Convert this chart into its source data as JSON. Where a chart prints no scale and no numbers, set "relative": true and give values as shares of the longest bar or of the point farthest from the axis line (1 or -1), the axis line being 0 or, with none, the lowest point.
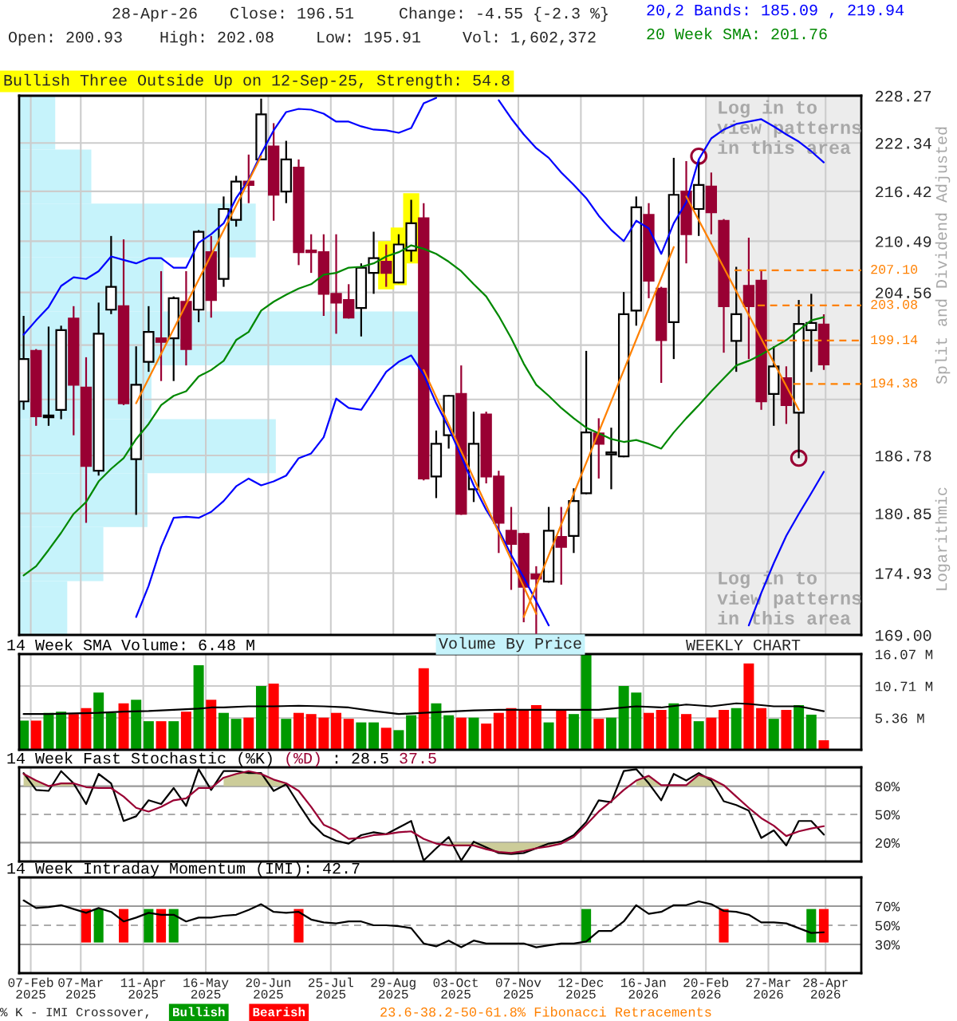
{
  "chart_data": [
    {
      "type": "candlestick",
      "log": "y",
      "grid": true,
      "tick_labels": "y",
      "xlim": [
        "2025-01-31T12:00",
        "2026-05-18"
      ],
      "ylim": [
        169,
        228.27
      ],
      "xticks": [
        "2025-02-07",
        "2025-03-07",
        "2025-04-11",
        "2025-05-16",
        "2025-06-20",
        "2025-07-25",
        "2025-08-29",
        "2025-10-03",
        "2025-11-07",
        "2025-12-12",
        "2026-01-16",
        "2026-02-20",
        "2026-03-27",
        "2026-04-28"
      ],
      "yticks": [
        {
          "value": 169,
          "label": "169.00"
        },
        {
          "value": 174.93,
          "label": "174.93"
        },
        {
          "value": 180.85,
          "label": "180.85"
        },
        {
          "value": 186.78,
          "label": "186.78"
        },
        {
          "value": 192.71,
          "label": null
        },
        {
          "value": 198.64,
          "label": null
        },
        {
          "value": 204.56,
          "label": "204.56"
        },
        {
          "value": 210.49,
          "label": "210.49"
        },
        {
          "value": 216.42,
          "label": "216.42"
        },
        {
          "value": 222.34,
          "label": "222.34"
        },
        {
          "value": 228.27,
          "label": "228.27"
        }
      ],
      "ylabel": "Split and Dividend Adjusted",
      "annotations": [
        "28-Apr-26",
        "Close: 196.51",
        "Change: -4.55 {-2.3 %}",
        "Open: 200.93",
        "High: 202.08",
        "Low: 195.91",
        "Vol: 1,602,372",
        "Bullish Three Outside Up on 12-Sep-25, Strength: 54.8",
        "Log in to view patterns in this area",
        "WEEKLY CHART",
        "Logarithmic",
        "23.6-38.2-50-61.8% Fibonacci Retracements"
      ],
      "bands": [
        {
          "axis": "x",
          "from": "2026-02-20",
          "to": "2026-05-18",
          "label": "Log in to view patterns in this area",
          "color": "#ececec"
        }
      ],
      "x": [
        "2025-02-03",
        "2025-02-10",
        "2025-02-17",
        "2025-02-24",
        "2025-03-03",
        "2025-03-10",
        "2025-03-17",
        "2025-03-24",
        "2025-03-31",
        "2025-04-07",
        "2025-04-14",
        "2025-04-21",
        "2025-04-28",
        "2025-05-05",
        "2025-05-12",
        "2025-05-19",
        "2025-05-26",
        "2025-06-02",
        "2025-06-09",
        "2025-06-16",
        "2025-06-23",
        "2025-06-30",
        "2025-07-07",
        "2025-07-14",
        "2025-07-21",
        "2025-07-28",
        "2025-08-04",
        "2025-08-11",
        "2025-08-18",
        "2025-08-25",
        "2025-09-01",
        "2025-09-08",
        "2025-09-15",
        "2025-09-22",
        "2025-09-29",
        "2025-10-06",
        "2025-10-13",
        "2025-10-20",
        "2025-10-27",
        "2025-11-03",
        "2025-11-10",
        "2025-11-17",
        "2025-11-24",
        "2025-12-01",
        "2025-12-08",
        "2025-12-15",
        "2025-12-22",
        "2025-12-29",
        "2026-01-05",
        "2026-01-12",
        "2026-01-19",
        "2026-01-26",
        "2026-02-02",
        "2026-02-09",
        "2026-02-16",
        "2026-02-23",
        "2026-03-02",
        "2026-03-09",
        "2026-03-16",
        "2026-03-23",
        "2026-03-30",
        "2026-04-06",
        "2026-04-13",
        "2026-04-20",
        "2026-04-27"
      ],
      "ohlc": [
        [
          192.5,
          201.9,
          191.6,
          197.1
        ],
        [
          198.0,
          198.2,
          189.9,
          190.9
        ],
        [
          190.8,
          200.7,
          189.9,
          191.0
        ],
        [
          191.6,
          200.8,
          190.6,
          200.3
        ],
        [
          201.6,
          203.0,
          188.9,
          194.3
        ],
        [
          194.0,
          197.3,
          179.9,
          185.7
        ],
        [
          185.2,
          203.4,
          184.7,
          199.9
        ],
        [
          202.6,
          211.1,
          202.1,
          205.2
        ],
        [
          203.0,
          210.7,
          192.1,
          192.3
        ],
        [
          186.4,
          198.5,
          180.7,
          194.3
        ],
        [
          196.8,
          203.0,
          195.7,
          200.1
        ],
        [
          199.4,
          207.0,
          194.7,
          199.0
        ],
        [
          199.4,
          204.1,
          194.7,
          203.9
        ],
        [
          203.5,
          207.0,
          196.4,
          198.2
        ],
        [
          202.6,
          211.8,
          201.2,
          211.6
        ],
        [
          209.2,
          211.1,
          201.7,
          203.7
        ],
        [
          206.1,
          215.8,
          205.2,
          214.3
        ],
        [
          213.0,
          218.3,
          212.2,
          217.6
        ],
        [
          217.6,
          220.9,
          215.0,
          217.2
        ],
        [
          220.3,
          227.9,
          220.2,
          225.9
        ],
        [
          221.9,
          224.8,
          212.9,
          216.0
        ],
        [
          216.4,
          222.6,
          215.0,
          220.3
        ],
        [
          219.3,
          220.3,
          207.7,
          209.2
        ],
        [
          209.4,
          211.3,
          206.8,
          209.2
        ],
        [
          209.2,
          211.3,
          201.9,
          204.4
        ],
        [
          204.4,
          211.3,
          199.9,
          203.4
        ],
        [
          203.7,
          205.5,
          201.6,
          201.7
        ],
        [
          202.8,
          207.9,
          199.6,
          207.4
        ],
        [
          206.8,
          211.6,
          204.4,
          208.5
        ],
        [
          208.1,
          210.1,
          205.2,
          206.8
        ],
        [
          205.7,
          211.3,
          205.6,
          210.1
        ],
        [
          209.4,
          215.4,
          208.1,
          212.6
        ],
        [
          213.2,
          215.0,
          184.2,
          184.4
        ],
        [
          184.6,
          189.4,
          182.4,
          188.0
        ],
        [
          188.9,
          193.2,
          187.5,
          193.1
        ],
        [
          193.3,
          196.4,
          180.7,
          180.8
        ],
        [
          183.3,
          191.4,
          182.0,
          188.0
        ],
        [
          191.1,
          191.4,
          183.9,
          184.6
        ],
        [
          184.6,
          185.2,
          176.9,
          179.9
        ],
        [
          179.1,
          181.5,
          173.3,
          177.8
        ],
        [
          178.8,
          178.9,
          170.2,
          173.6
        ],
        [
          174.8,
          175.6,
          169.1,
          174.4
        ],
        [
          174.1,
          181.5,
          174.0,
          179.1
        ],
        [
          178.5,
          181.5,
          173.8,
          177.5
        ],
        [
          178.6,
          183.4,
          176.9,
          182.1
        ],
        [
          182.9,
          198.0,
          182.8,
          189.2
        ],
        [
          189.1,
          190.7,
          184.4,
          188.0
        ],
        [
          186.9,
          189.7,
          183.3,
          187.1
        ],
        [
          186.7,
          204.6,
          186.6,
          202.1
        ],
        [
          202.5,
          215.8,
          200.8,
          214.5
        ],
        [
          213.6,
          215.0,
          203.9,
          205.9
        ],
        [
          205.0,
          205.2,
          194.5,
          199.2
        ],
        [
          201.2,
          220.5,
          197.1,
          216.0
        ],
        [
          216.4,
          220.1,
          207.9,
          211.3
        ],
        [
          214.3,
          220.3,
          211.1,
          217.2
        ],
        [
          217.0,
          218.7,
          211.3,
          213.9
        ],
        [
          212.9,
          213.1,
          197.8,
          203.0
        ],
        [
          199.1,
          207.5,
          195.7,
          202.1
        ],
        [
          205.3,
          210.9,
          197.1,
          203.0
        ],
        [
          205.9,
          207.0,
          191.6,
          192.5
        ],
        [
          193.3,
          198.5,
          189.9,
          196.3
        ],
        [
          195.0,
          196.3,
          190.1,
          192.1
        ],
        [
          191.3,
          203.7,
          186.5,
          201.0
        ],
        [
          200.3,
          204.4,
          195.7,
          201.1
        ],
        [
          200.93,
          202.08,
          195.91,
          196.51
        ]
      ],
      "colors": [
        "#ffffff",
        "#990033",
        "#ffffff",
        "#ffffff",
        "#990033",
        "#990033",
        "#ffffff",
        "#ffffff",
        "#990033",
        "#ffffff",
        "#ffffff",
        "#990033",
        "#ffffff",
        "#990033",
        "#ffffff",
        "#990033",
        "#ffffff",
        "#ffffff",
        "#990033",
        "#ffffff",
        "#990033",
        "#ffffff",
        "#990033",
        "#990033",
        "#990033",
        "#990033",
        "#990033",
        "#ffffff",
        "#ffffff",
        "#990033",
        "#ffffff",
        "#ffffff",
        "#990033",
        "#ffffff",
        "#ffffff",
        "#990033",
        "#ffffff",
        "#990033",
        "#990033",
        "#990033",
        "#990033",
        "#990033",
        "#ffffff",
        "#990033",
        "#ffffff",
        "#ffffff",
        "#990033",
        "#ffffff",
        "#ffffff",
        "#ffffff",
        "#990033",
        "#990033",
        "#ffffff",
        "#990033",
        "#ffffff",
        "#990033",
        "#990033",
        "#ffffff",
        "#990033",
        "#990033",
        "#ffffff",
        "#990033",
        "#ffffff",
        "#ffffff",
        "#990033"
      ],
      "series": [
        {
          "type": "line",
          "name": "20,2 Bands: 185.09 , 219.94",
          "color": "#0000ff",
          "values": [
            199.8,
            201.4,
            202.9,
            205.3,
            206.3,
            206.1,
            207.0,
            208.7,
            208.3,
            207.9,
            208.5,
            208.5,
            207.4,
            207.4,
            210.3,
            211.3,
            212.6,
            215.6,
            217.8,
            221.0,
            223.9,
            226.2,
            226.6,
            226.5,
            226.0,
            225.0,
            225.0,
            224.4,
            224.0,
            223.9,
            223.6,
            224.2,
            227.3,
            228.0,
            null,
            null,
            null,
            null,
            227.7,
            225.4,
            223.4,
            221.7,
            220.5,
            218.7,
            217.2,
            215.6,
            213.5,
            211.8,
            210.5,
            212.9,
            212.0,
            209.0,
            212.6,
            215.1,
            220.3,
            222.9,
            224.0,
            224.7,
            225.0,
            225.3,
            224.4,
            223.4,
            222.5,
            221.3,
            219.94
          ]
        },
        {
          "type": "line",
          "color": "#0000ff",
          "values": [
            null,
            null,
            null,
            null,
            null,
            null,
            null,
            null,
            null,
            170.7,
            173.7,
            177.5,
            180.4,
            180.5,
            180.4,
            181.0,
            182.1,
            183.6,
            184.4,
            183.7,
            184.1,
            184.7,
            186.5,
            187.0,
            188.7,
            192.8,
            191.8,
            191.6,
            193.6,
            195.7,
            196.8,
            197.5,
            195.4,
            192.3,
            189.7,
            186.7,
            183.7,
            181.2,
            179.2,
            176.7,
            174.5,
            172.2,
            169.9,
            null,
            null,
            null,
            null,
            null,
            null,
            null,
            null,
            null,
            null,
            null,
            null,
            null,
            null,
            null,
            169.9,
            173.0,
            175.9,
            178.6,
            180.8,
            182.9,
            185.09
          ]
        },
        {
          "type": "line",
          "name": "20 Week SMA: 201.76",
          "color": "#008800",
          "values": [
            174.7,
            175.6,
            177.2,
            178.9,
            180.8,
            182.0,
            184.1,
            185.4,
            186.5,
            188.5,
            190.1,
            192.1,
            193.1,
            193.6,
            195.2,
            195.9,
            196.9,
            199.2,
            200.1,
            202.5,
            203.5,
            204.3,
            205.0,
            205.5,
            206.6,
            206.8,
            207.4,
            207.5,
            207.9,
            208.7,
            209.2,
            210.0,
            209.6,
            209.0,
            208.1,
            207.0,
            205.5,
            204.1,
            201.9,
            199.4,
            196.6,
            194.3,
            193.1,
            191.8,
            190.7,
            189.7,
            189.1,
            188.5,
            188.2,
            188.4,
            188.0,
            187.5,
            189.2,
            190.7,
            192.1,
            193.6,
            195.0,
            196.4,
            196.9,
            197.6,
            198.4,
            199.2,
            200.3,
            201.4,
            201.76
          ]
        },
        {
          "type": "line",
          "color": "#ff8000",
          "x": [
            "2025-04-07",
            "2025-06-16"
          ],
          "values": [
            192.3,
            220.7
          ]
        },
        {
          "type": "line",
          "color": "#ff8000",
          "x": [
            "2025-09-15",
            "2025-11-17"
          ],
          "values": [
            195.9,
            171.0
          ]
        },
        {
          "type": "line",
          "color": "#ff8000",
          "x": [
            "2025-11-10",
            "2026-02-02"
          ],
          "values": [
            170.7,
            209.8
          ]
        },
        {
          "type": "line",
          "color": "#ff8000",
          "x": [
            "2026-02-09",
            "2026-04-13"
          ],
          "values": [
            215.8,
            191.6
          ]
        },
        {
          "type": "line",
          "name": "207.10",
          "color": "#ff8000",
          "line_style": "dashed",
          "x": [
            "2026-03-08",
            "2026-05-18"
          ],
          "values": [
            207.1,
            207.1
          ]
        },
        {
          "type": "line",
          "name": "203.08",
          "color": "#ff8000",
          "line_style": "dashed",
          "x": [
            "2026-03-21",
            "2026-05-18"
          ],
          "values": [
            203.08,
            203.08
          ]
        },
        {
          "type": "line",
          "name": "199.14",
          "color": "#ff8000",
          "line_style": "dashed",
          "x": [
            "2026-03-25",
            "2026-05-18"
          ],
          "values": [
            199.14,
            199.14
          ]
        },
        {
          "type": "line",
          "name": "194.38",
          "color": "#ff8000",
          "line_style": "dashed",
          "x": [
            "2026-04-10",
            "2026-05-18"
          ],
          "values": [
            194.38,
            194.38
          ]
        },
        {
          "type": "bar",
          "color": "#ffff00",
          "x": [
            "2025-08-25",
            "2025-09-01",
            "2025-09-08"
          ],
          "base": [
            204.9,
            205.4,
            207.9
          ],
          "values": [
            5.6,
            6.7,
            8.3
          ]
        },
        {
          "type": "scatter",
          "marker": "circle",
          "color": "#990033",
          "x": [
            "2026-02-16",
            "2026-04-13"
          ],
          "values": [
            220.7,
            186.5
          ]
        }
      ]
    },
    {
      "type": "bar",
      "orientation": "horizontal",
      "relative": true,
      "annotations": [
        "Volume By Price"
      ],
      "categories": [
        null,
        null,
        null,
        null,
        null,
        null,
        null,
        null,
        null,
        null
      ],
      "values": [
        0.09,
        0.18,
        0.59,
        0.36,
        1,
        0.33,
        0.64,
        0.32,
        0.21,
        0.12
      ],
      "color": "#c6f3fb"
    },
    {
      "type": "bar",
      "grid": true,
      "tick_labels": "y",
      "xlim": [
        "2025-01-31T12:00",
        "2026-05-18"
      ],
      "ylim": [
        0,
        16.07
      ],
      "xticks": [
        "2025-02-07",
        "2025-03-07",
        "2025-04-11",
        "2025-05-16",
        "2025-06-20",
        "2025-07-25",
        "2025-08-29",
        "2025-10-03",
        "2025-11-07",
        "2025-12-12",
        "2026-01-16",
        "2026-02-20",
        "2026-03-27",
        "2026-04-28"
      ],
      "yticks": [
        {
          "value": 5.36,
          "label": "5.36 M"
        },
        {
          "value": 10.71,
          "label": "10.71 M"
        },
        {
          "value": 16.07,
          "label": "16.07 M"
        }
      ],
      "x": [
        "2025-02-03",
        "2025-02-10",
        "2025-02-17",
        "2025-02-24",
        "2025-03-03",
        "2025-03-10",
        "2025-03-17",
        "2025-03-24",
        "2025-03-31",
        "2025-04-07",
        "2025-04-14",
        "2025-04-21",
        "2025-04-28",
        "2025-05-05",
        "2025-05-12",
        "2025-05-19",
        "2025-05-26",
        "2025-06-02",
        "2025-06-09",
        "2025-06-16",
        "2025-06-23",
        "2025-06-30",
        "2025-07-07",
        "2025-07-14",
        "2025-07-21",
        "2025-07-28",
        "2025-08-04",
        "2025-08-11",
        "2025-08-18",
        "2025-08-25",
        "2025-09-01",
        "2025-09-08",
        "2025-09-15",
        "2025-09-22",
        "2025-09-29",
        "2025-10-06",
        "2025-10-13",
        "2025-10-20",
        "2025-10-27",
        "2025-11-03",
        "2025-11-10",
        "2025-11-17",
        "2025-11-24",
        "2025-12-01",
        "2025-12-08",
        "2025-12-15",
        "2025-12-22",
        "2025-12-29",
        "2026-01-05",
        "2026-01-12",
        "2026-01-19",
        "2026-01-26",
        "2026-02-02",
        "2026-02-09",
        "2026-02-16",
        "2026-02-23",
        "2026-03-02",
        "2026-03-09",
        "2026-03-16",
        "2026-03-23",
        "2026-03-30",
        "2026-04-06",
        "2026-04-13",
        "2026-04-20",
        "2026-04-27"
      ],
      "values": [
        4.9,
        4.9,
        6.2,
        6.4,
        6.0,
        7.0,
        9.6,
        6.2,
        7.8,
        8.4,
        4.8,
        4.8,
        4.8,
        6.4,
        14.2,
        8.4,
        6.2,
        5.2,
        5.4,
        10.7,
        11.1,
        5.2,
        6.2,
        6.0,
        5.4,
        6.2,
        5.2,
        4.6,
        4.6,
        3.7,
        3.3,
        5.8,
        13.7,
        7.8,
        5.8,
        5.4,
        5.4,
        4.4,
        6.2,
        7.0,
        6.7,
        7.5,
        4.6,
        6.7,
        6.0,
        16.0,
        5.2,
        5.4,
        10.7,
        9.6,
        6.2,
        6.7,
        7.8,
        6.0,
        4.8,
        5.4,
        6.7,
        7.0,
        14.5,
        7.0,
        5.2,
        6.7,
        7.5,
        5.9,
        1.6
      ],
      "colors": [
        "#009900",
        "#ff0000",
        "#009900",
        "#009900",
        "#ff0000",
        "#ff0000",
        "#009900",
        "#009900",
        "#ff0000",
        "#009900",
        "#009900",
        "#ff0000",
        "#009900",
        "#ff0000",
        "#009900",
        "#ff0000",
        "#009900",
        "#009900",
        "#ff0000",
        "#009900",
        "#ff0000",
        "#009900",
        "#ff0000",
        "#ff0000",
        "#ff0000",
        "#ff0000",
        "#ff0000",
        "#009900",
        "#009900",
        "#ff0000",
        "#009900",
        "#009900",
        "#ff0000",
        "#009900",
        "#009900",
        "#ff0000",
        "#009900",
        "#ff0000",
        "#ff0000",
        "#ff0000",
        "#ff0000",
        "#ff0000",
        "#009900",
        "#ff0000",
        "#009900",
        "#009900",
        "#ff0000",
        "#009900",
        "#009900",
        "#009900",
        "#ff0000",
        "#ff0000",
        "#009900",
        "#ff0000",
        "#009900",
        "#ff0000",
        "#ff0000",
        "#009900",
        "#ff0000",
        "#ff0000",
        "#009900",
        "#ff0000",
        "#009900",
        "#009900",
        "#ff0000"
      ],
      "series": [
        {
          "type": "line",
          "name": "14 Week SMA Volume: 6.48 M",
          "color": "#000000",
          "x": [
            "2025-02-03",
            "2025-02-17",
            "2025-03-03",
            "2025-03-17",
            "2025-03-31",
            "2025-04-14",
            "2025-04-28",
            "2025-05-12",
            "2025-05-19",
            "2025-05-26",
            "2025-06-09",
            "2025-06-23",
            "2025-07-07",
            "2025-07-21",
            "2025-08-04",
            "2025-08-18",
            "2025-09-01",
            "2025-09-15",
            "2025-09-29",
            "2025-10-13",
            "2025-10-27",
            "2025-11-10",
            "2025-11-24",
            "2025-12-08",
            "2025-12-22",
            "2025-12-29",
            "2026-01-12",
            "2026-01-26",
            "2026-02-09",
            "2026-02-23",
            "2026-03-09",
            "2026-03-16",
            "2026-03-30",
            "2026-04-13",
            "2026-04-27"
          ],
          "values": [
            6.0,
            6.0,
            6.1,
            6.2,
            6.4,
            6.5,
            6.7,
            6.9,
            7.1,
            7.1,
            7.3,
            7.3,
            7.4,
            7.3,
            7.1,
            6.5,
            6.0,
            6.2,
            6.4,
            6.6,
            6.7,
            6.7,
            6.7,
            6.7,
            6.7,
            6.9,
            7.3,
            7.1,
            7.6,
            7.3,
            7.8,
            7.7,
            7.3,
            7.3,
            6.48
          ]
        }
      ]
    },
    {
      "type": "line",
      "title": "14 Week Fast Stochastic",
      "grid": "x",
      "tick_labels": "y",
      "xlim": [
        "2025-01-31T12:00",
        "2026-05-18"
      ],
      "ylim": [
        0,
        100
      ],
      "xticks": [
        "2025-02-07",
        "2025-03-07",
        "2025-04-11",
        "2025-05-16",
        "2025-06-20",
        "2025-07-25",
        "2025-08-29",
        "2025-10-03",
        "2025-11-07",
        "2025-12-12",
        "2026-01-16",
        "2026-02-20",
        "2026-03-27",
        "2026-04-28"
      ],
      "yticks": [
        {
          "value": 20,
          "label": "20%"
        },
        {
          "value": 50,
          "label": "50%"
        },
        {
          "value": 80,
          "label": "80%"
        }
      ],
      "ref_lines": [
        {
          "axis": "y",
          "value": 80,
          "color": "#999999"
        },
        {
          "axis": "y",
          "value": 50,
          "color": "#aaaaaa",
          "line_style": "dashed"
        },
        {
          "axis": "y",
          "value": 20,
          "color": "#999999"
        }
      ],
      "x": [
        "2025-02-03",
        "2025-02-10",
        "2025-02-17",
        "2025-02-24",
        "2025-03-03",
        "2025-03-10",
        "2025-03-17",
        "2025-03-24",
        "2025-03-31",
        "2025-04-07",
        "2025-04-14",
        "2025-04-21",
        "2025-04-28",
        "2025-05-05",
        "2025-05-12",
        "2025-05-19",
        "2025-05-26",
        "2025-06-02",
        "2025-06-09",
        "2025-06-16",
        "2025-06-23",
        "2025-06-30",
        "2025-07-07",
        "2025-07-14",
        "2025-07-21",
        "2025-07-28",
        "2025-08-04",
        "2025-08-11",
        "2025-08-18",
        "2025-08-25",
        "2025-09-01",
        "2025-09-08",
        "2025-09-15",
        "2025-09-22",
        "2025-09-29",
        "2025-10-06",
        "2025-10-13",
        "2025-10-20",
        "2025-10-27",
        "2025-11-03",
        "2025-11-10",
        "2025-11-17",
        "2025-11-24",
        "2025-12-01",
        "2025-12-08",
        "2025-12-15",
        "2025-12-22",
        "2025-12-29",
        "2026-01-05",
        "2026-01-12",
        "2026-01-19",
        "2026-01-26",
        "2026-02-02",
        "2026-02-09",
        "2026-02-16",
        "2026-02-23",
        "2026-03-02",
        "2026-03-09",
        "2026-03-16",
        "2026-03-23",
        "2026-03-30",
        "2026-04-06",
        "2026-04-13",
        "2026-04-20",
        "2026-04-27"
      ],
      "series": [
        {
          "type": "line",
          "name": "(%K)",
          "color": "#000000",
          "values": [
            94,
            76,
            75,
            96,
            83,
            61,
            93,
            83,
            43,
            48,
            65,
            61,
            78,
            59,
            98,
            76,
            96,
            96,
            94,
            94,
            75,
            82,
            61,
            41,
            28,
            22,
            19,
            28,
            31,
            29,
            36,
            43,
            1,
            14,
            26,
            1,
            21,
            15,
            9,
            8,
            9,
            14,
            19,
            21,
            28,
            42,
            65,
            63,
            96,
            98,
            83,
            65,
            93,
            86,
            94,
            86,
            64,
            60,
            54,
            25,
            33,
            17,
            43,
            43,
            28.5
          ]
        },
        {
          "type": "line",
          "name": "(%D)",
          "color": "#990033",
          "values": [
            93,
            86,
            80,
            83,
            83,
            79,
            78,
            78,
            69,
            57,
            53,
            58,
            65,
            67,
            78,
            78,
            89,
            93,
            96,
            93,
            87,
            83,
            75,
            58,
            39,
            33,
            24,
            25,
            28,
            29,
            31,
            32,
            24,
            19,
            17,
            17,
            17,
            13,
            10,
            9,
            11,
            14,
            16,
            19,
            26,
            39,
            53,
            64,
            76,
            86,
            91,
            81,
            81,
            81,
            92,
            88,
            81,
            69,
            57,
            46,
            38,
            27,
            32,
            35,
            37.5
          ],
          "lower": [
            80,
            80,
            80,
            80,
            80,
            null,
            null,
            null,
            null,
            null,
            null,
            null,
            null,
            null,
            null,
            null,
            80,
            80,
            80,
            80,
            80,
            80,
            null,
            null,
            null,
            null,
            null,
            null,
            null,
            null,
            null,
            null,
            null,
            null,
            17,
            17,
            17,
            13,
            10,
            9,
            11,
            14,
            16,
            19,
            null,
            null,
            null,
            null,
            null,
            80,
            80,
            80,
            80,
            80,
            80,
            80,
            80,
            null,
            null,
            null,
            null,
            null,
            null,
            null,
            null
          ],
          "upper": [
            93,
            86,
            80,
            83,
            83,
            null,
            null,
            null,
            null,
            null,
            null,
            null,
            null,
            null,
            null,
            null,
            89,
            93,
            96,
            93,
            87,
            83,
            null,
            null,
            null,
            null,
            null,
            null,
            null,
            null,
            null,
            null,
            null,
            null,
            20,
            20,
            20,
            20,
            20,
            20,
            20,
            20,
            20,
            20,
            null,
            null,
            null,
            null,
            null,
            86,
            91,
            81,
            81,
            81,
            92,
            88,
            81,
            null,
            null,
            null,
            null,
            null,
            null,
            null,
            null
          ]
        }
      ],
      "annotations": [
        ": 28.5",
        "37.5"
      ]
    },
    {
      "type": "line",
      "title": "14 Week Intraday Momentum (IMI): 42.7",
      "grid": "x",
      "xlim": [
        "2025-01-31T12:00",
        "2026-05-18"
      ],
      "ylim": [
        0,
        100
      ],
      "xticks": [
        {
          "value": "2025-02-07",
          "label": "07-Feb\n2025"
        },
        {
          "value": "2025-03-07",
          "label": "07-Mar\n2025"
        },
        {
          "value": "2025-04-11",
          "label": "11-Apr\n2025"
        },
        {
          "value": "2025-05-16",
          "label": "16-May\n2025"
        },
        {
          "value": "2025-06-20",
          "label": "20-Jun\n2025"
        },
        {
          "value": "2025-07-25",
          "label": "25-Jul\n2025"
        },
        {
          "value": "2025-08-29",
          "label": "29-Aug\n2025"
        },
        {
          "value": "2025-10-03",
          "label": "03-Oct\n2025"
        },
        {
          "value": "2025-11-07",
          "label": "07-Nov\n2025"
        },
        {
          "value": "2025-12-12",
          "label": "12-Dec\n2025"
        },
        {
          "value": "2026-01-16",
          "label": "16-Jan\n2026"
        },
        {
          "value": "2026-02-20",
          "label": "20-Feb\n2026"
        },
        {
          "value": "2026-03-27",
          "label": "27-Mar\n2026"
        },
        {
          "value": "2026-04-28",
          "label": "28-Apr\n2026"
        }
      ],
      "yticks": [
        {
          "value": 30,
          "label": "30%"
        },
        {
          "value": 50,
          "label": "50%"
        },
        {
          "value": 70,
          "label": "70%"
        }
      ],
      "ref_lines": [
        {
          "axis": "y",
          "value": 70,
          "color": "#999999"
        },
        {
          "axis": "y",
          "value": 50,
          "color": "#aaaaaa",
          "line_style": "dashed"
        },
        {
          "axis": "y",
          "value": 30,
          "color": "#999999"
        }
      ],
      "x": [
        "2025-02-03",
        "2025-02-10",
        "2025-02-17",
        "2025-02-24",
        "2025-03-03",
        "2025-03-10",
        "2025-03-17",
        "2025-03-24",
        "2025-03-31",
        "2025-04-07",
        "2025-04-14",
        "2025-04-21",
        "2025-04-28",
        "2025-05-05",
        "2025-05-12",
        "2025-05-19",
        "2025-05-26",
        "2025-06-02",
        "2025-06-09",
        "2025-06-16",
        "2025-06-23",
        "2025-06-30",
        "2025-07-07",
        "2025-07-14",
        "2025-07-21",
        "2025-07-28",
        "2025-08-04",
        "2025-08-11",
        "2025-08-18",
        "2025-08-25",
        "2025-09-01",
        "2025-09-08",
        "2025-09-15",
        "2025-09-22",
        "2025-09-29",
        "2025-10-06",
        "2025-10-13",
        "2025-10-20",
        "2025-10-27",
        "2025-11-03",
        "2025-11-10",
        "2025-11-17",
        "2025-11-24",
        "2025-12-01",
        "2025-12-08",
        "2025-12-15",
        "2025-12-22",
        "2025-12-29",
        "2026-01-05",
        "2026-01-12",
        "2026-01-19",
        "2026-01-26",
        "2026-02-02",
        "2026-02-09",
        "2026-02-16",
        "2026-02-23",
        "2026-03-02",
        "2026-03-09",
        "2026-03-16",
        "2026-03-23",
        "2026-03-30",
        "2026-04-06",
        "2026-04-13",
        "2026-04-20",
        "2026-04-27"
      ],
      "series": [
        {
          "type": "line",
          "color": "#000000",
          "values": [
            76,
            68,
            69,
            71,
            67,
            63,
            68,
            64,
            54,
            58,
            63,
            61,
            61,
            54,
            58,
            58,
            60,
            61,
            66,
            72,
            64,
            63,
            64,
            56,
            53,
            52,
            54,
            54,
            50,
            50,
            49,
            47,
            31,
            28,
            34,
            27,
            34,
            31,
            31,
            31,
            31,
            27,
            29,
            31,
            31,
            33,
            44,
            44,
            54,
            71,
            62,
            64,
            71,
            71,
            75,
            72,
            65,
            64,
            61,
            53,
            53,
            52,
            47,
            42,
            42.7
          ]
        },
        {
          "type": "bar",
          "name": "Bullish",
          "color": "#009900",
          "x": [
            "2025-03-17",
            "2025-04-14",
            "2025-04-28",
            "2025-12-15",
            "2026-04-20"
          ],
          "base": [
            32,
            32,
            32,
            32,
            32
          ],
          "values": [
            35,
            35,
            35,
            35,
            35
          ]
        },
        {
          "type": "bar",
          "name": "Bearish",
          "color": "#ff0000",
          "x": [
            "2025-03-10",
            "2025-03-31",
            "2025-04-21",
            "2025-07-07",
            "2026-03-02",
            "2026-04-27"
          ],
          "base": [
            32,
            32,
            32,
            32,
            32,
            32
          ],
          "values": [
            35,
            35,
            35,
            35,
            35,
            35
          ]
        }
      ],
      "legend": "bottom",
      "legend_title": "% K - IMI Crossover,"
    }
  ]
}
